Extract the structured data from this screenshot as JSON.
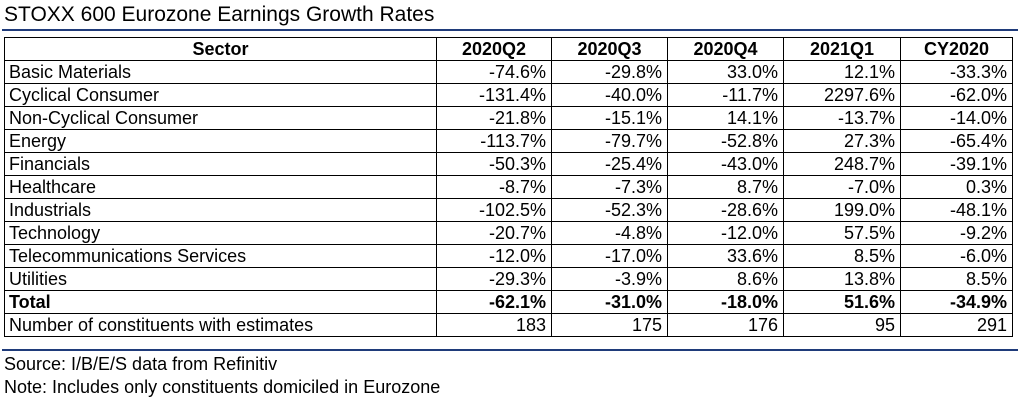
{
  "title": "STOXX 600 Eurozone Earnings Growth Rates",
  "table": {
    "headers": [
      "Sector",
      "2020Q2",
      "2020Q3",
      "2020Q4",
      "2021Q1",
      "CY2020"
    ],
    "rows": [
      [
        "Basic Materials",
        "-74.6%",
        "-29.8%",
        "33.0%",
        "12.1%",
        "-33.3%"
      ],
      [
        "Cyclical Consumer",
        "-131.4%",
        "-40.0%",
        "-11.7%",
        "2297.6%",
        "-62.0%"
      ],
      [
        "Non-Cyclical Consumer",
        "-21.8%",
        "-15.1%",
        "14.1%",
        "-13.7%",
        "-14.0%"
      ],
      [
        "Energy",
        "-113.7%",
        "-79.7%",
        "-52.8%",
        "27.3%",
        "-65.4%"
      ],
      [
        "Financials",
        "-50.3%",
        "-25.4%",
        "-43.0%",
        "248.7%",
        "-39.1%"
      ],
      [
        "Healthcare",
        "-8.7%",
        "-7.3%",
        "8.7%",
        "-7.0%",
        "0.3%"
      ],
      [
        "Industrials",
        "-102.5%",
        "-52.3%",
        "-28.6%",
        "199.0%",
        "-48.1%"
      ],
      [
        "Technology",
        "-20.7%",
        "-4.8%",
        "-12.0%",
        "57.5%",
        "-9.2%"
      ],
      [
        "Telecommunications Services",
        "-12.0%",
        "-17.0%",
        "33.6%",
        "8.5%",
        "-6.0%"
      ],
      [
        "Utilities",
        "-29.3%",
        "-3.9%",
        "8.6%",
        "13.8%",
        "8.5%"
      ]
    ],
    "total": [
      "Total",
      "-62.1%",
      "-31.0%",
      "-18.0%",
      "51.6%",
      "-34.9%"
    ],
    "constituents": [
      "Number of constituents with estimates",
      "183",
      "175",
      "176",
      "95",
      "291"
    ]
  },
  "notes": {
    "source": "Source: I/B/E/S data from Refinitiv",
    "note": "Note: Includes only constituents domiciled in Eurozone"
  },
  "colors": {
    "rule": "#1f3b7a",
    "border": "#000000"
  }
}
